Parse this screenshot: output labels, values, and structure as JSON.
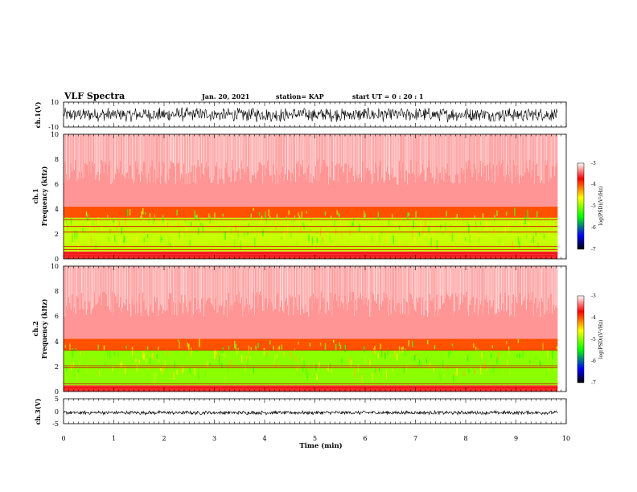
{
  "header": {
    "title": "VLF Spectra",
    "date": "Jan. 20, 2021",
    "station": "station= KAP",
    "start": "start  UT =   0 : 20 : 1"
  },
  "colors": {
    "line": "#000000",
    "spectrogram_high": "#ff0000",
    "spectrogram_mid": "#ffff00",
    "spectrogram_low": "#00ff00",
    "colorbar_stops": [
      "#ffffff",
      "#ff0000",
      "#ffff00",
      "#00ff00",
      "#0000ff",
      "#000000"
    ]
  },
  "chart_data": [
    {
      "type": "line",
      "panel": "ch1-waveform",
      "ylabel": "ch.1(V)",
      "ylim": [
        -10,
        10
      ],
      "y_ticklabels": [
        "10",
        "-10"
      ],
      "xlim": [
        0,
        10
      ],
      "x_span_data": [
        0,
        9.83
      ],
      "description_values": {
        "min": -6,
        "max": 6,
        "mean": 0
      }
    },
    {
      "type": "heatmap",
      "panel": "ch1-spectrogram",
      "ylabel_top": "ch.1",
      "ylabel": "Frequency (kHz)",
      "ylim": [
        0,
        10
      ],
      "y_ticklabels": [
        "0",
        "2",
        "4",
        "6",
        "8",
        "10"
      ],
      "xlim": [
        0,
        10
      ],
      "x_span_data": [
        0,
        9.83
      ],
      "bands": [
        {
          "f_low": 0,
          "f_high": 0.6,
          "level": -3.6
        },
        {
          "f_low": 0.6,
          "f_high": 3.3,
          "level": -4.8
        },
        {
          "f_low": 3.3,
          "f_high": 4.2,
          "level": -4.0
        },
        {
          "f_low": 4.2,
          "f_high": 10,
          "level": -3.3
        }
      ],
      "lines_khz": [
        0.25,
        0.45,
        0.75,
        1.0,
        2.15,
        2.6,
        3.15
      ],
      "colorbar": {
        "label": "log(PSD)(V²/Hz)",
        "range": [
          -7,
          -3
        ],
        "ticks": [
          "-3",
          "-4",
          "-5",
          "-6",
          "-7"
        ]
      }
    },
    {
      "type": "heatmap",
      "panel": "ch2-spectrogram",
      "ylabel_top": "ch.2",
      "ylabel": "Frequency (kHz)",
      "ylim": [
        0,
        10
      ],
      "y_ticklabels": [
        "0",
        "2",
        "4",
        "6",
        "8",
        "10"
      ],
      "xlim": [
        0,
        10
      ],
      "x_span_data": [
        0,
        9.83
      ],
      "bands": [
        {
          "f_low": 0,
          "f_high": 0.5,
          "level": -3.6
        },
        {
          "f_low": 0.5,
          "f_high": 3.3,
          "level": -5.0
        },
        {
          "f_low": 3.3,
          "f_high": 4.2,
          "level": -4.0
        },
        {
          "f_low": 4.2,
          "f_high": 10,
          "level": -3.3
        }
      ],
      "lines_khz": [
        0.3,
        0.6,
        1.9,
        2.05,
        3.3
      ],
      "colorbar": {
        "label": "log(PSD)(V²/Hz)",
        "range": [
          -7,
          -3
        ],
        "ticks": [
          "-3",
          "-4",
          "-5",
          "-6",
          "-7"
        ]
      }
    },
    {
      "type": "line",
      "panel": "ch3-waveform",
      "ylabel": "ch.3(V)",
      "ylim": [
        -5,
        5
      ],
      "y_ticklabels": [
        "5",
        "0",
        "-5"
      ],
      "xlim": [
        0,
        10
      ],
      "x_span_data": [
        0,
        9.83
      ],
      "description_values": {
        "min": -0.8,
        "max": 0.8,
        "mean": -0.6
      }
    }
  ],
  "xaxis": {
    "label": "Time  (min)",
    "ticklabels": [
      "0",
      "1",
      "2",
      "3",
      "4",
      "5",
      "6",
      "7",
      "8",
      "9",
      "10"
    ]
  }
}
